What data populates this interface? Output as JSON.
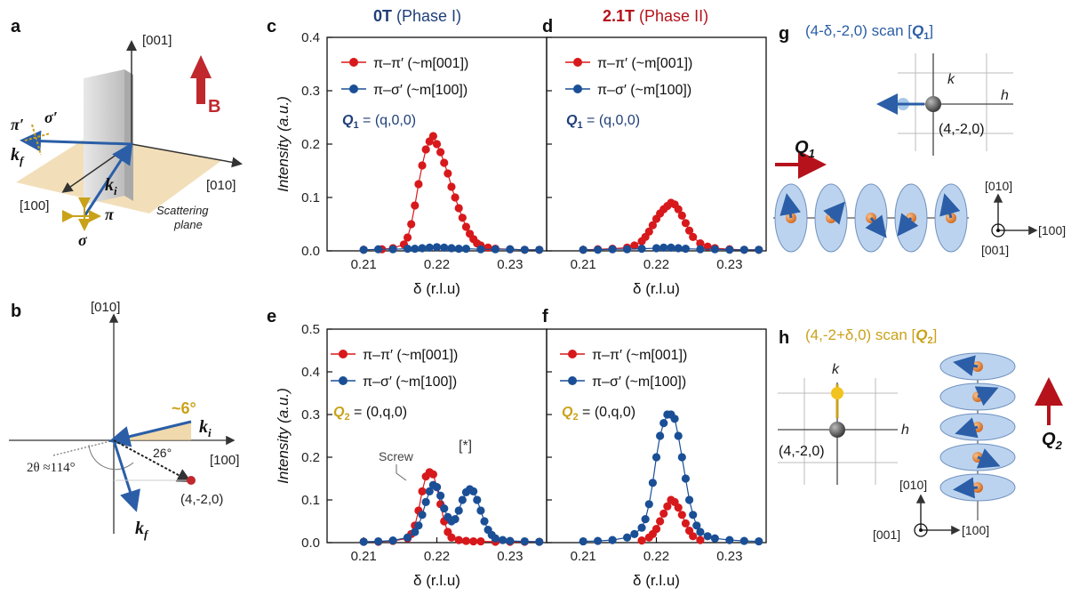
{
  "panels": {
    "a": {
      "label": "a",
      "axis_001": "[001]",
      "axis_010": "[010]",
      "axis_100": "[100]",
      "field": "B",
      "pi_prime": "π′",
      "sigma_prime": "σ′",
      "kf": "k",
      "kf_sub": "f",
      "ki": "k",
      "ki_sub": "i",
      "pi": "π",
      "sigma": "σ",
      "plane1": "Scattering",
      "plane2": "plane"
    },
    "b": {
      "label": "b",
      "axis_010": "[010]",
      "axis_100": "[100]",
      "angle_top": "~6°",
      "angle_26": "26°",
      "two_theta": "2θ ≈114°",
      "point": "(4,-2,0)",
      "ki": "k",
      "ki_sub": "i",
      "kf": "k",
      "kf_sub": "f"
    },
    "c": {
      "label": "c",
      "title_bold": "0T",
      "title_rest": " (Phase I)",
      "qlabel": "Q",
      "qsub": "1",
      "qvalue": " = (q,0,0)"
    },
    "d": {
      "label": "d",
      "title_bold": "2.1T",
      "title_rest": " (Phase II)",
      "qlabel": "Q",
      "qsub": "1",
      "qvalue": " = (q,0,0)"
    },
    "e": {
      "label": "e",
      "qlabel": "Q",
      "qsub": "2",
      "qvalue": " = (0,q,0)",
      "screw": "Screw",
      "star": "[*]"
    },
    "f": {
      "label": "f",
      "qlabel": "Q",
      "qsub": "2",
      "qvalue": " = (0,q,0)"
    },
    "g": {
      "label": "g",
      "title": "(4-δ,-2,0) scan [",
      "title_q": "Q",
      "title_sub": "1",
      "title_end": "]",
      "k": "k",
      "h": "h",
      "point": "(4,-2,0)",
      "arrow_q": "Q",
      "arrow_sub": "1",
      "ax010": "[010]",
      "ax100": "[100]",
      "ax001": "[001]"
    },
    "h": {
      "label": "h",
      "title": "(4,-2+δ,0) scan [",
      "title_q": "Q",
      "title_sub": "2",
      "title_end": "]",
      "k": "k",
      "h": "h",
      "point": "(4,-2,0)",
      "arrow_q": "Q",
      "arrow_sub": "2",
      "ax010": "[010]",
      "ax100": "[100]",
      "ax001": "[001]"
    }
  },
  "legend": {
    "red": "π–π′  (~m[001])",
    "blue": "π–σ′  (~m[100])"
  },
  "axis": {
    "ylabel": "Intensity (a.u.)",
    "xlabel": "δ (r.l.u)"
  },
  "colors": {
    "red": "#d7191c",
    "blue": "#1a4f96",
    "navy": "#1f3f7a",
    "gold": "#c9a21a",
    "darkred": "#b5121b"
  },
  "chart_data": [
    {
      "type": "scatter",
      "panel": "c",
      "title": "0T (Phase I)",
      "xlim": [
        0.205,
        0.235
      ],
      "ylim": [
        0,
        0.4
      ],
      "xticks": [
        0.21,
        0.22,
        0.23
      ],
      "yticks": [
        0.0,
        0.1,
        0.2,
        0.3,
        0.4
      ],
      "xlabel": "δ (r.l.u)",
      "ylabel": "Intensity (a.u.)",
      "series": [
        {
          "name": "π–π′ (~m[001])",
          "color": "#d7191c",
          "x": [
            0.21,
            0.2125,
            0.214,
            0.2155,
            0.216,
            0.2165,
            0.217,
            0.2175,
            0.218,
            0.2185,
            0.219,
            0.2195,
            0.22,
            0.2205,
            0.221,
            0.2215,
            0.222,
            0.2225,
            0.223,
            0.2235,
            0.224,
            0.2245,
            0.225,
            0.2255,
            0.226,
            0.227,
            0.228,
            0.23,
            0.232,
            0.234
          ],
          "y": [
            0.002,
            0.003,
            0.005,
            0.012,
            0.025,
            0.05,
            0.085,
            0.125,
            0.16,
            0.19,
            0.205,
            0.215,
            0.2,
            0.185,
            0.165,
            0.145,
            0.12,
            0.1,
            0.08,
            0.062,
            0.045,
            0.032,
            0.022,
            0.014,
            0.01,
            0.006,
            0.004,
            0.003,
            0.002,
            0.002
          ]
        },
        {
          "name": "π–σ′ (~m[100])",
          "color": "#1a4f96",
          "x": [
            0.21,
            0.212,
            0.214,
            0.216,
            0.217,
            0.218,
            0.219,
            0.22,
            0.221,
            0.222,
            0.223,
            0.224,
            0.226,
            0.228,
            0.23,
            0.232,
            0.234
          ],
          "y": [
            0.002,
            0.003,
            0.003,
            0.004,
            0.004,
            0.005,
            0.006,
            0.007,
            0.006,
            0.005,
            0.004,
            0.004,
            0.003,
            0.003,
            0.003,
            0.002,
            0.002
          ]
        }
      ]
    },
    {
      "type": "scatter",
      "panel": "d",
      "title": "2.1T (Phase II)",
      "xlim": [
        0.205,
        0.235
      ],
      "ylim": [
        0,
        0.4
      ],
      "xticks": [
        0.21,
        0.22,
        0.23
      ],
      "xlabel": "δ (r.l.u)",
      "series": [
        {
          "name": "π–π′ (~m[001])",
          "color": "#d7191c",
          "x": [
            0.21,
            0.212,
            0.214,
            0.216,
            0.217,
            0.218,
            0.2185,
            0.219,
            0.2195,
            0.22,
            0.2205,
            0.221,
            0.2215,
            0.222,
            0.2225,
            0.223,
            0.2235,
            0.224,
            0.2245,
            0.225,
            0.226,
            0.227,
            0.228,
            0.23,
            0.232,
            0.234
          ],
          "y": [
            0.002,
            0.003,
            0.004,
            0.006,
            0.01,
            0.018,
            0.026,
            0.036,
            0.048,
            0.06,
            0.07,
            0.078,
            0.084,
            0.09,
            0.087,
            0.078,
            0.066,
            0.052,
            0.038,
            0.026,
            0.014,
            0.008,
            0.005,
            0.003,
            0.002,
            0.002
          ]
        },
        {
          "name": "π–σ′ (~m[100])",
          "color": "#1a4f96",
          "x": [
            0.21,
            0.212,
            0.214,
            0.216,
            0.218,
            0.22,
            0.221,
            0.222,
            0.223,
            0.224,
            0.226,
            0.228,
            0.23,
            0.232,
            0.234
          ],
          "y": [
            0.002,
            0.002,
            0.003,
            0.003,
            0.004,
            0.005,
            0.006,
            0.006,
            0.005,
            0.004,
            0.003,
            0.003,
            0.002,
            0.002,
            0.002
          ]
        }
      ]
    },
    {
      "type": "scatter",
      "panel": "e",
      "xlim": [
        0.205,
        0.235
      ],
      "ylim": [
        0,
        0.5
      ],
      "xticks": [
        0.21,
        0.22,
        0.23
      ],
      "yticks": [
        0.0,
        0.1,
        0.2,
        0.3,
        0.4,
        0.5
      ],
      "xlabel": "δ (r.l.u)",
      "ylabel": "Intensity (a.u.)",
      "series": [
        {
          "name": "π–π′ (~m[001])",
          "color": "#d7191c",
          "x": [
            0.21,
            0.212,
            0.214,
            0.216,
            0.2165,
            0.217,
            0.2175,
            0.218,
            0.2185,
            0.219,
            0.2195,
            0.22,
            0.2205,
            0.221,
            0.2215,
            0.222,
            0.223,
            0.224,
            0.225,
            0.226,
            0.228,
            0.23,
            0.232,
            0.234
          ],
          "y": [
            0.002,
            0.002,
            0.004,
            0.01,
            0.02,
            0.04,
            0.075,
            0.12,
            0.155,
            0.165,
            0.16,
            0.13,
            0.09,
            0.05,
            0.025,
            0.012,
            0.006,
            0.004,
            0.003,
            0.003,
            0.002,
            0.002,
            0.002,
            0.002
          ]
        },
        {
          "name": "π–σ′ (~m[100])",
          "color": "#1a4f96",
          "x": [
            0.21,
            0.212,
            0.214,
            0.216,
            0.217,
            0.2175,
            0.218,
            0.2185,
            0.219,
            0.2195,
            0.22,
            0.2205,
            0.221,
            0.2215,
            0.222,
            0.2225,
            0.223,
            0.2235,
            0.224,
            0.2245,
            0.225,
            0.2255,
            0.226,
            0.2265,
            0.227,
            0.2275,
            0.228,
            0.229,
            0.23,
            0.232,
            0.234
          ],
          "y": [
            0.002,
            0.003,
            0.005,
            0.012,
            0.025,
            0.04,
            0.065,
            0.095,
            0.12,
            0.135,
            0.13,
            0.11,
            0.08,
            0.06,
            0.05,
            0.055,
            0.075,
            0.1,
            0.118,
            0.125,
            0.12,
            0.1,
            0.075,
            0.05,
            0.03,
            0.018,
            0.01,
            0.006,
            0.004,
            0.003,
            0.002
          ]
        }
      ]
    },
    {
      "type": "scatter",
      "panel": "f",
      "xlim": [
        0.205,
        0.235
      ],
      "ylim": [
        0,
        0.5
      ],
      "xticks": [
        0.21,
        0.22,
        0.23
      ],
      "xlabel": "δ (r.l.u)",
      "series": [
        {
          "name": "π–σ′ (~m[100])",
          "color": "#1a4f96",
          "x": [
            0.21,
            0.212,
            0.214,
            0.216,
            0.217,
            0.218,
            0.2185,
            0.219,
            0.2195,
            0.22,
            0.2205,
            0.221,
            0.2215,
            0.222,
            0.2225,
            0.223,
            0.2235,
            0.224,
            0.2245,
            0.225,
            0.2255,
            0.226,
            0.227,
            0.228,
            0.23,
            0.232,
            0.234
          ],
          "y": [
            0.003,
            0.004,
            0.006,
            0.012,
            0.02,
            0.035,
            0.055,
            0.09,
            0.14,
            0.2,
            0.25,
            0.28,
            0.3,
            0.3,
            0.29,
            0.25,
            0.2,
            0.15,
            0.1,
            0.065,
            0.04,
            0.025,
            0.015,
            0.01,
            0.006,
            0.004,
            0.003
          ]
        },
        {
          "name": "π–π′ (~m[001])",
          "color": "#d7191c",
          "x": [
            0.218,
            0.219,
            0.2195,
            0.22,
            0.2205,
            0.221,
            0.2215,
            0.222,
            0.2225,
            0.223,
            0.2235,
            0.224,
            0.2245,
            0.225,
            0.226
          ],
          "y": [
            0.005,
            0.012,
            0.02,
            0.032,
            0.05,
            0.068,
            0.085,
            0.1,
            0.095,
            0.082,
            0.065,
            0.045,
            0.028,
            0.015,
            0.006
          ]
        }
      ]
    }
  ]
}
